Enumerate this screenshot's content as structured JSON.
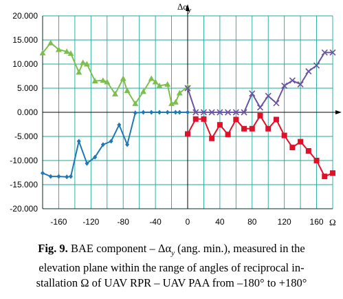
{
  "chart_data": {
    "type": "line",
    "title": "",
    "ylabel": "Δα",
    "ylabel_subscript": "y",
    "xlabel": "Ω",
    "xlim": [
      -180,
      180
    ],
    "ylim": [
      -20,
      20
    ],
    "yticks": [
      20,
      15,
      10,
      5,
      0,
      -5,
      -10,
      -15,
      -20
    ],
    "ytick_labels": [
      "20.000",
      "15.000",
      "10.000",
      "5.000",
      "0.000",
      "-5.000",
      "-10.000",
      "-15.000",
      "-20.000"
    ],
    "xticks": [
      -160,
      -120,
      -80,
      -40,
      0,
      40,
      80,
      120,
      160
    ],
    "xtick_labels": [
      "-160",
      "-120",
      "-80",
      "-40",
      "0",
      "40",
      "80",
      "120",
      "160"
    ],
    "grid": true,
    "series": [
      {
        "color": "#7dbf4d",
        "marker": "triangle",
        "x": [
          -180,
          -170,
          -160,
          -150,
          -145,
          -135,
          -130,
          -125,
          -115,
          -105,
          -100,
          -90,
          -80,
          -75,
          -65,
          -55,
          -45,
          -40,
          -35,
          -25,
          -20,
          -15,
          -10,
          0
        ],
        "y": [
          12.3,
          14.4,
          13.0,
          12.6,
          12.2,
          8.3,
          10.3,
          10.0,
          6.5,
          6.6,
          6.3,
          3.8,
          7.0,
          4.5,
          1.8,
          4.3,
          7.0,
          6.3,
          5.5,
          5.8,
          1.8,
          2.1,
          4.0,
          5.3
        ]
      },
      {
        "color": "#1f78b4",
        "marker": "diamond",
        "x": [
          -180,
          -170,
          -160,
          -150,
          -145,
          -135,
          -125,
          -115,
          -105,
          -95,
          -85,
          -75,
          -65,
          -55,
          -45,
          -35,
          -25,
          -15,
          -10,
          0
        ],
        "y": [
          -12.6,
          -13.3,
          -13.3,
          -13.4,
          -13.3,
          -6.0,
          -10.6,
          -9.3,
          -6.7,
          -6.0,
          -2.6,
          -6.7,
          -0.1,
          0.0,
          0.0,
          0.0,
          0.0,
          0.0,
          0.0,
          0.0
        ]
      },
      {
        "color": "#6a54a3",
        "marker": "x",
        "x": [
          0,
          10,
          20,
          30,
          40,
          50,
          60,
          70,
          80,
          90,
          100,
          110,
          120,
          130,
          140,
          150,
          160,
          170,
          180
        ],
        "y": [
          5.0,
          0.0,
          0.0,
          0.0,
          0.0,
          0.0,
          0.0,
          0.0,
          3.9,
          1.0,
          3.4,
          1.9,
          5.5,
          6.6,
          5.8,
          8.5,
          9.7,
          12.4,
          12.4
        ]
      },
      {
        "color": "#e0102a",
        "marker": "square",
        "x": [
          0,
          10,
          20,
          30,
          40,
          50,
          60,
          70,
          80,
          90,
          100,
          110,
          120,
          130,
          140,
          150,
          160,
          170,
          180
        ],
        "y": [
          -4.5,
          -1.4,
          -1.4,
          -5.4,
          -2.6,
          -4.6,
          -1.5,
          -3.4,
          -3.4,
          -0.7,
          -3.4,
          -1.5,
          -4.8,
          -7.3,
          -6.1,
          -8.0,
          -10.0,
          -13.3,
          -12.6
        ]
      }
    ]
  },
  "caption": {
    "fig_label": "Fig. 9.",
    "text": " BAE component – Δα (ang. min.), measured in the elevation plane within the range of angles of reciprocal in-stallation Ω of UAV RPR – UAV PAA from –180° to +180°",
    "line1_bold": "Fig. 9.",
    "line1": " BAE component – Δα",
    "line1_sub": "y",
    "line1_rest": " (ang. min.), measured in the",
    "line2": "elevation plane within the range of angles of reciprocal in-",
    "line3": "stallation Ω of UAV RPR – UAV PAA from –180° to +180°"
  }
}
